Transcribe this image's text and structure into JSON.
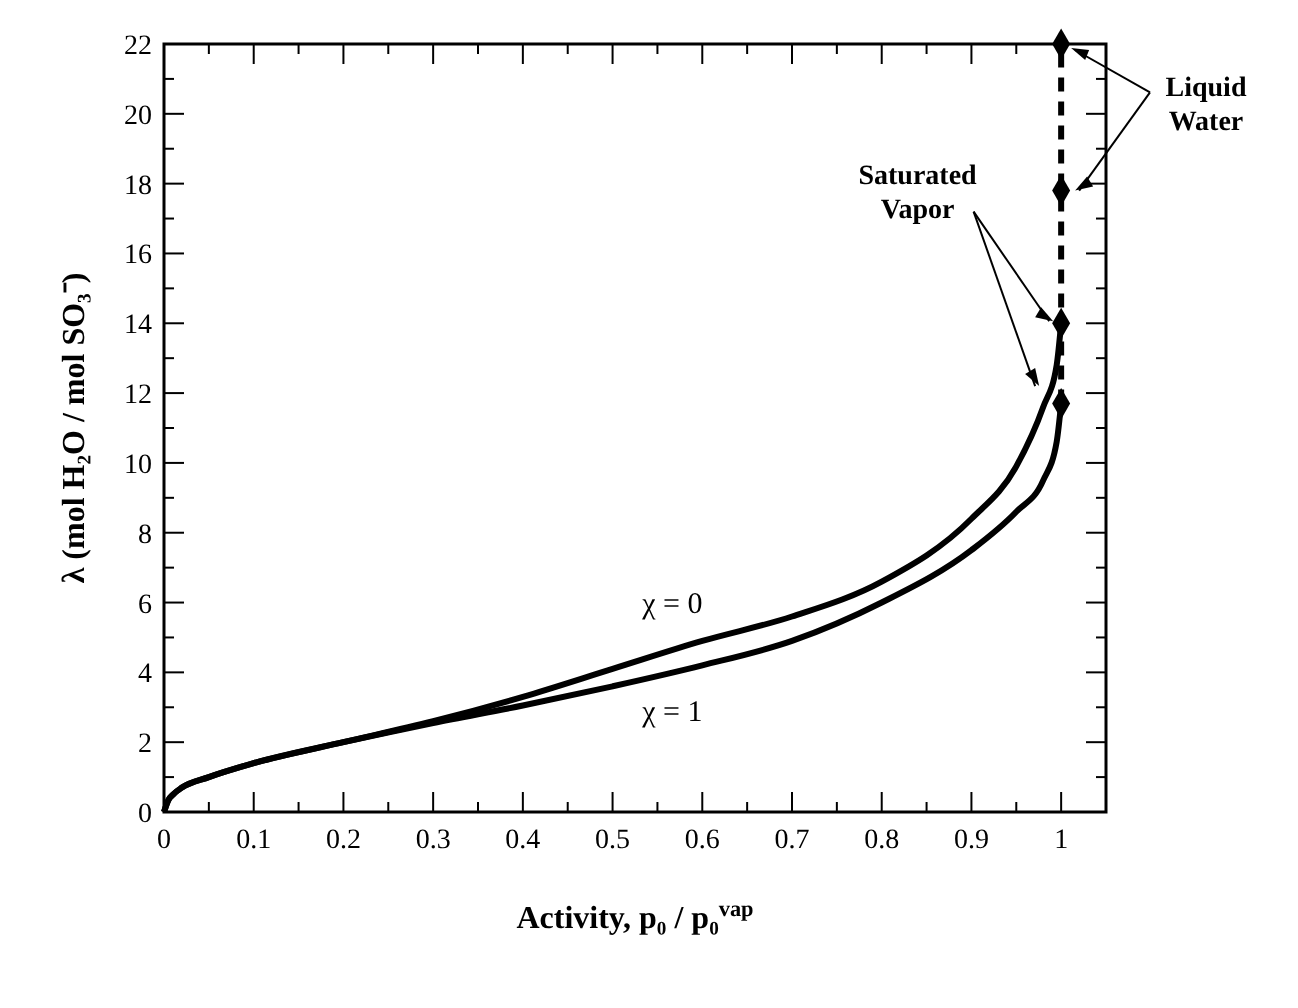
{
  "chart_data": {
    "type": "line",
    "xlabel": "Activity, p₀ / p₀$^{vap}$",
    "ylabel": "λ (mol H₂O / mol SO₃⁻)",
    "xlim": [
      0,
      1.05
    ],
    "ylim": [
      0,
      22
    ],
    "xticks": [
      0,
      {
        "value": 0.05,
        "label": null
      },
      0.1,
      {
        "value": 0.15,
        "label": null
      },
      0.2,
      {
        "value": 0.25,
        "label": null
      },
      0.3,
      {
        "value": 0.35,
        "label": null
      },
      0.4,
      {
        "value": 0.45,
        "label": null
      },
      0.5,
      {
        "value": 0.55,
        "label": null
      },
      0.6,
      {
        "value": 0.65,
        "label": null
      },
      0.7,
      {
        "value": 0.75,
        "label": null
      },
      0.8,
      {
        "value": 0.85,
        "label": null
      },
      0.9,
      {
        "value": 0.95,
        "label": null
      },
      1
    ],
    "yticks": [
      0,
      {
        "value": 1,
        "label": null
      },
      2,
      {
        "value": 3,
        "label": null
      },
      4,
      {
        "value": 5,
        "label": null
      },
      6,
      {
        "value": 7,
        "label": null
      },
      8,
      {
        "value": 9,
        "label": null
      },
      10,
      {
        "value": 11,
        "label": null
      },
      12,
      {
        "value": 13,
        "label": null
      },
      14,
      {
        "value": 15,
        "label": null
      },
      16,
      {
        "value": 17,
        "label": null
      },
      18,
      {
        "value": 19,
        "label": null
      },
      20,
      {
        "value": 21,
        "label": null
      },
      22
    ],
    "grid": false,
    "series": [
      {
        "color": "#000000",
        "marker": "none",
        "line_style": "solid",
        "x": [
          0,
          0.005,
          0.01,
          0.02,
          0.05,
          0.1,
          0.2,
          0.3,
          0.4,
          0.5,
          0.6,
          0.7,
          0.8,
          0.9,
          0.95,
          0.98,
          0.995,
          1
        ],
        "values": [
          0,
          0.35,
          0.5,
          0.7,
          1.0,
          1.4,
          2.0,
          2.6,
          3.3,
          4.1,
          4.9,
          5.6,
          6.6,
          8.4,
          9.9,
          11.6,
          12.8,
          14
        ]
      },
      {
        "color": "#000000",
        "marker": "none",
        "line_style": "solid",
        "x": [
          0,
          0.005,
          0.01,
          0.02,
          0.05,
          0.1,
          0.2,
          0.3,
          0.4,
          0.5,
          0.6,
          0.7,
          0.8,
          0.9,
          0.95,
          0.98,
          0.995,
          1
        ],
        "values": [
          0,
          0.35,
          0.5,
          0.7,
          1.0,
          1.4,
          2.0,
          2.55,
          3.05,
          3.6,
          4.2,
          4.9,
          6.0,
          7.5,
          8.6,
          9.5,
          10.6,
          11.7
        ]
      },
      {
        "color": "#000000",
        "marker": "diamond",
        "line_style": "dashed",
        "x": [
          1,
          1,
          1,
          1
        ],
        "values": [
          11.7,
          14,
          17.8,
          22
        ]
      }
    ],
    "annotations": [
      "χ = 0",
      "χ = 1",
      {
        "text": "Saturated Vapor",
        "x": 1,
        "y": 14
      },
      {
        "text": "Liquid Water",
        "x": 1,
        "y": 22
      }
    ]
  }
}
